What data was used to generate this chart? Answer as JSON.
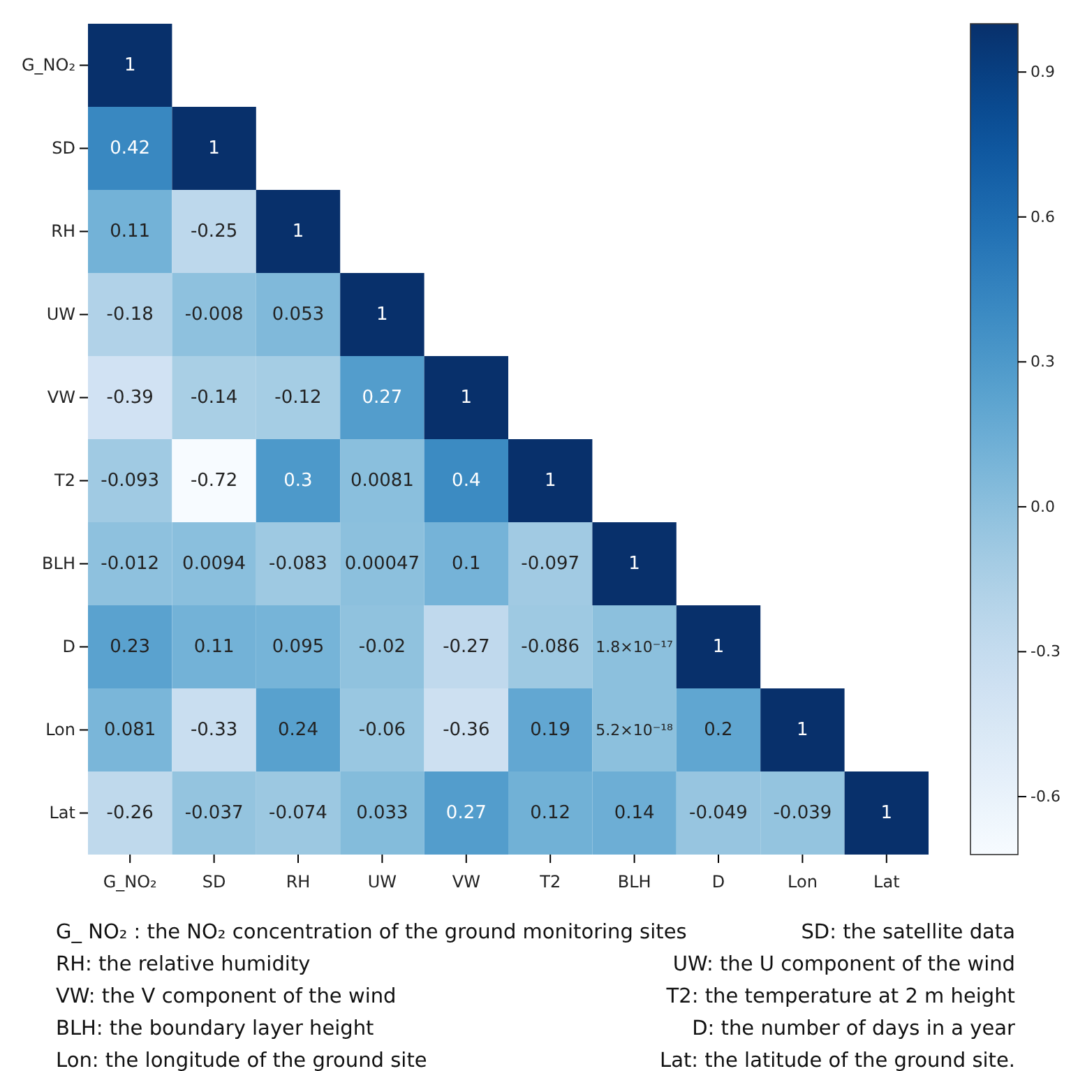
{
  "chart_data": {
    "type": "heatmap",
    "categories": [
      "G_NO₂",
      "SD",
      "RH",
      "UW",
      "VW",
      "T2",
      "BLH",
      "D",
      "Lon",
      "Lat"
    ],
    "y_categories": [
      "G_NO₂",
      "SD",
      "RH",
      "UW",
      "VW",
      "T2",
      "BLH",
      "D",
      "Lon",
      "Lat"
    ],
    "cells": [
      [
        1,
        null,
        null,
        null,
        null,
        null,
        null,
        null,
        null,
        null
      ],
      [
        0.42,
        1,
        null,
        null,
        null,
        null,
        null,
        null,
        null,
        null
      ],
      [
        0.11,
        -0.25,
        1,
        null,
        null,
        null,
        null,
        null,
        null,
        null
      ],
      [
        -0.18,
        -0.008,
        0.053,
        1,
        null,
        null,
        null,
        null,
        null,
        null
      ],
      [
        -0.39,
        -0.14,
        -0.12,
        0.27,
        1,
        null,
        null,
        null,
        null,
        null
      ],
      [
        -0.093,
        -0.72,
        0.3,
        0.0081,
        0.4,
        1,
        null,
        null,
        null,
        null
      ],
      [
        -0.012,
        0.0094,
        -0.083,
        0.00047,
        0.1,
        -0.097,
        1,
        null,
        null,
        null
      ],
      [
        0.23,
        0.11,
        0.095,
        -0.02,
        -0.27,
        -0.086,
        1.8e-17,
        1,
        null,
        null
      ],
      [
        0.081,
        -0.33,
        0.24,
        -0.06,
        -0.36,
        0.19,
        5.2e-18,
        0.2,
        1,
        null
      ],
      [
        -0.26,
        -0.037,
        -0.074,
        0.033,
        0.27,
        0.12,
        0.14,
        -0.049,
        -0.039,
        1
      ]
    ],
    "cell_labels": [
      [
        "1",
        null,
        null,
        null,
        null,
        null,
        null,
        null,
        null,
        null
      ],
      [
        "0.42",
        "1",
        null,
        null,
        null,
        null,
        null,
        null,
        null,
        null
      ],
      [
        "0.11",
        "-0.25",
        "1",
        null,
        null,
        null,
        null,
        null,
        null,
        null
      ],
      [
        "-0.18",
        "-0.008",
        "0.053",
        "1",
        null,
        null,
        null,
        null,
        null,
        null
      ],
      [
        "-0.39",
        "-0.14",
        "-0.12",
        "0.27",
        "1",
        null,
        null,
        null,
        null,
        null
      ],
      [
        "-0.093",
        "-0.72",
        "0.3",
        "0.0081",
        "0.4",
        "1",
        null,
        null,
        null,
        null
      ],
      [
        "-0.012",
        "0.0094",
        "-0.083",
        "0.00047",
        "0.1",
        "-0.097",
        "1",
        null,
        null,
        null
      ],
      [
        "0.23",
        "0.11",
        "0.095",
        "-0.02",
        "-0.27",
        "-0.086",
        "1.8×10⁻¹⁷",
        "1",
        null,
        null
      ],
      [
        "0.081",
        "-0.33",
        "0.24",
        "-0.06",
        "-0.36",
        "0.19",
        "5.2×10⁻¹⁸",
        "0.2",
        "1",
        null
      ],
      [
        "-0.26",
        "-0.037",
        "-0.074",
        "0.033",
        "0.27",
        "0.12",
        "0.14",
        "-0.049",
        "-0.039",
        "1"
      ]
    ],
    "clim": [
      -0.72,
      1
    ],
    "cticks": [
      {
        "value": -0.6,
        "label": "-0.6"
      },
      {
        "value": -0.3,
        "label": "-0.3"
      },
      {
        "value": 0,
        "label": "0.0"
      },
      {
        "value": 0.3,
        "label": "0.3"
      },
      {
        "value": 0.6,
        "label": "0.6"
      },
      {
        "value": 0.9,
        "label": "0.9"
      }
    ],
    "annotations": [
      "G_ NO₂ : the NO₂ concentration of the ground monitoring sites",
      "SD: the satellite data",
      "RH:  the relative humidity",
      "UW: the U component of the wind",
      "VW: the V component of the wind",
      "T2:  the temperature at 2 m height",
      "BLH: the boundary layer height",
      "D: the number of days in a year",
      "Lon: the longitude of the ground site",
      "Lat: the latitude of the ground site."
    ]
  }
}
